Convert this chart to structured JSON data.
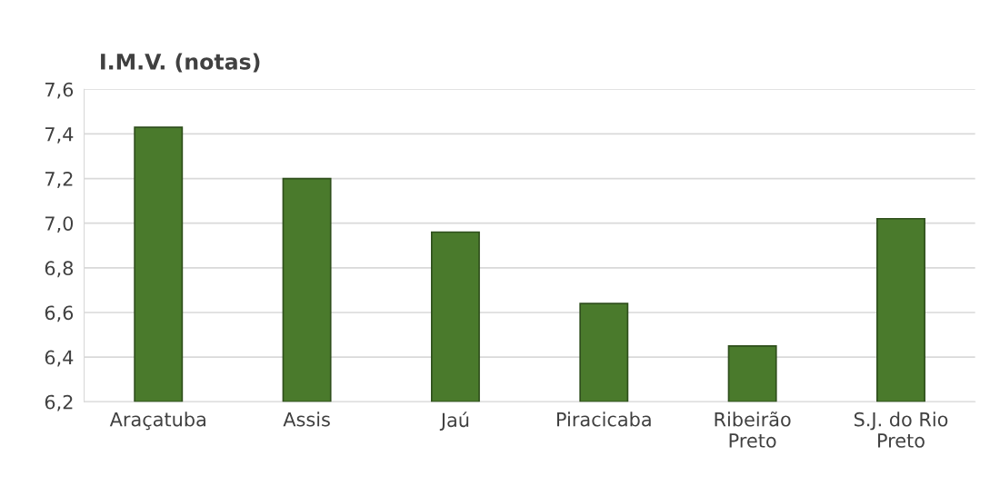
{
  "chart_data": {
    "type": "bar",
    "title": "I.M.V. (notas)",
    "categories": [
      "Araçatuba",
      "Assis",
      "Jaú",
      "Piracicaba",
      "Ribeirão\nPreto",
      "S.J. do Rio\nPreto"
    ],
    "values": [
      7.43,
      7.2,
      6.96,
      6.64,
      6.45,
      7.02
    ],
    "color": "#4a7a2c",
    "ylim": [
      6.2,
      7.6
    ],
    "yticks": [
      {
        "value": 6.2,
        "label": "6,2"
      },
      {
        "value": 6.4,
        "label": "6,4"
      },
      {
        "value": 6.6,
        "label": "6,6"
      },
      {
        "value": 6.8,
        "label": "6,8"
      },
      {
        "value": 7.0,
        "label": "7,0"
      },
      {
        "value": 7.2,
        "label": "7,2"
      },
      {
        "value": 7.4,
        "label": "7,4"
      },
      {
        "value": 7.6,
        "label": "7,6"
      }
    ],
    "grid": "y",
    "legend": false
  }
}
